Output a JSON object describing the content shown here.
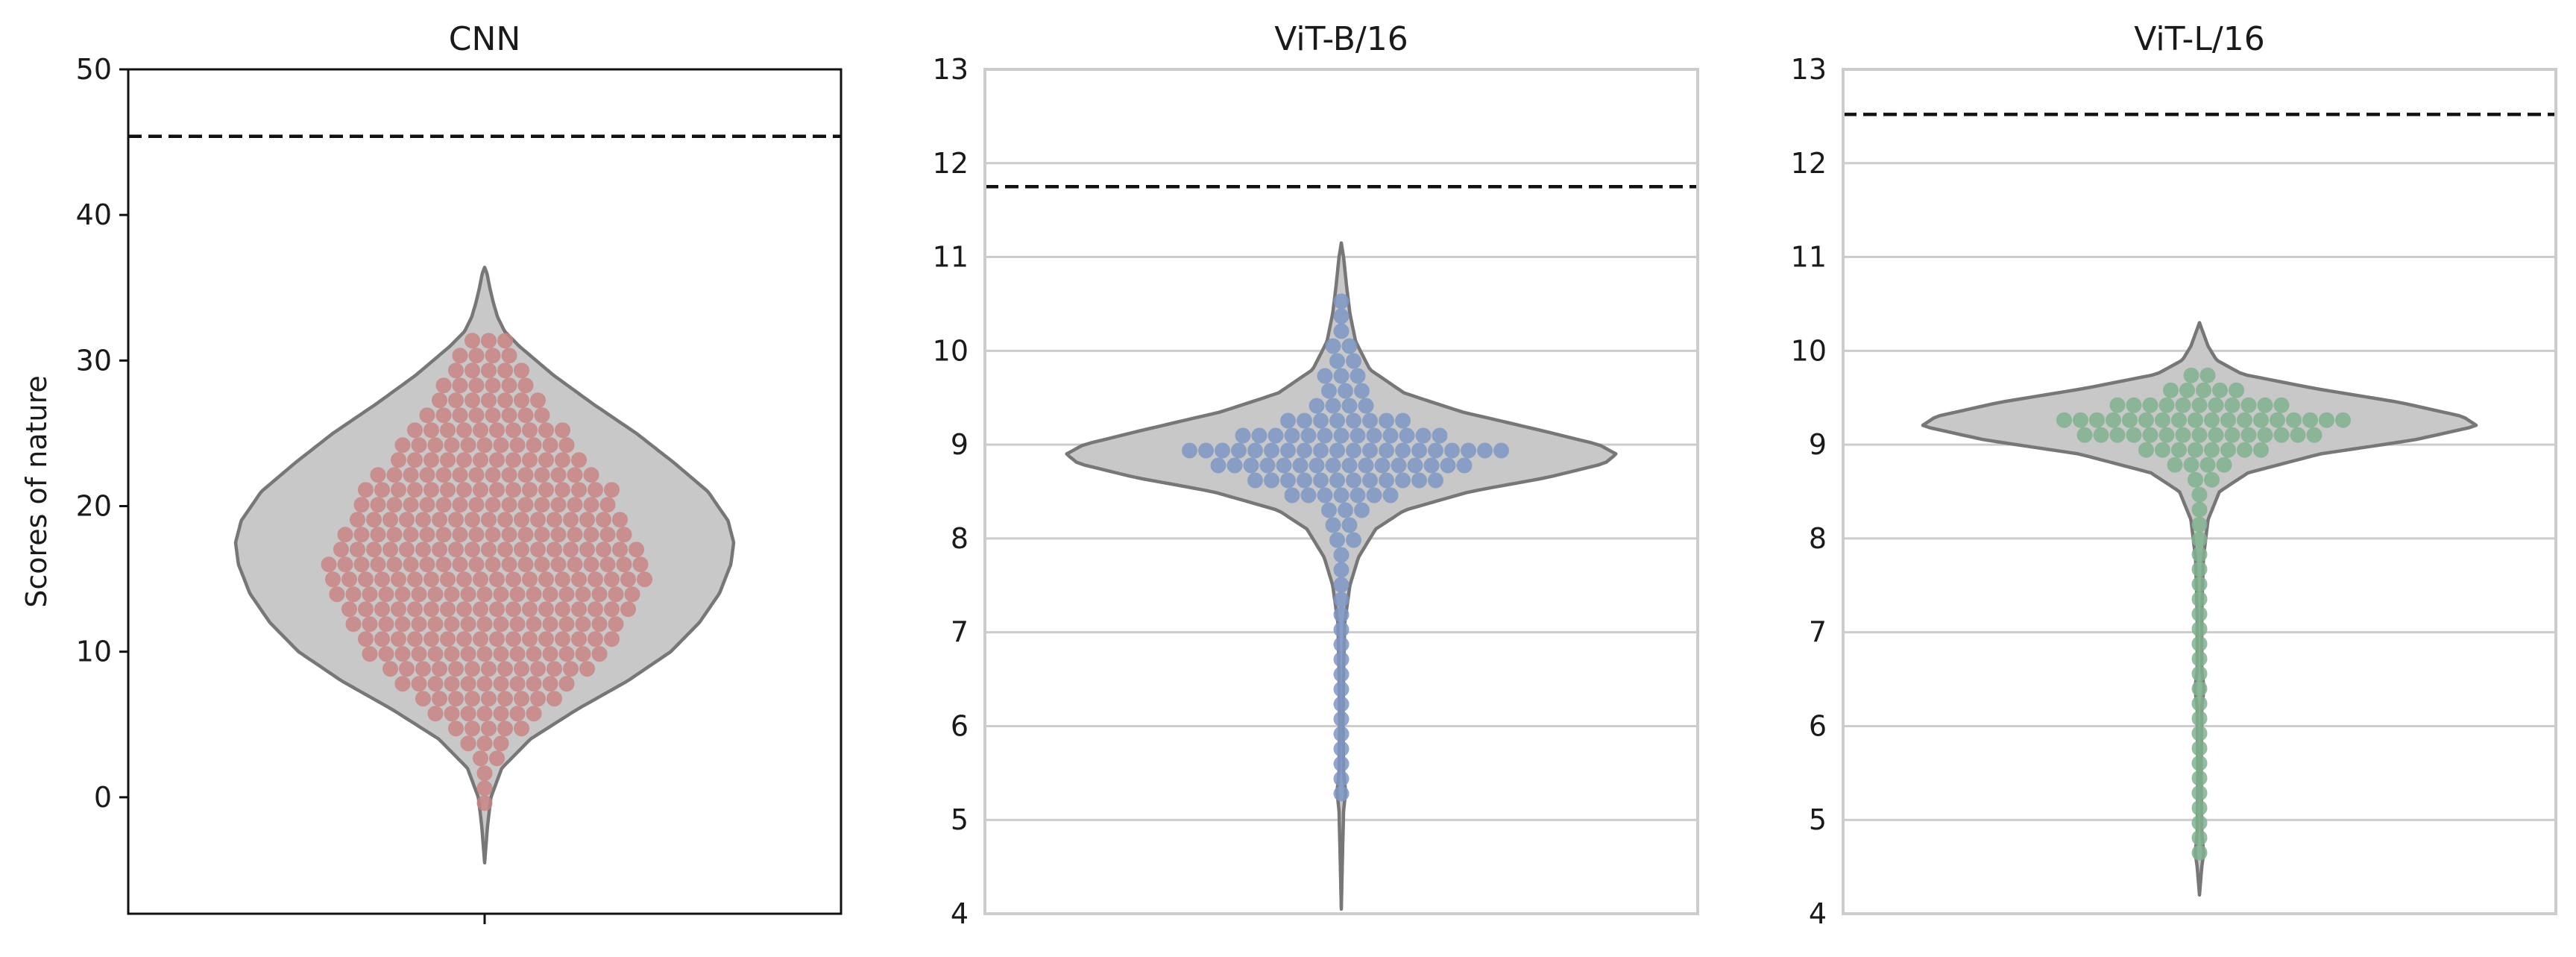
{
  "chart_data": [
    {
      "type": "violin",
      "title": "CNN",
      "ylabel": "Scores of nature",
      "xlabel": "",
      "ylim": [
        -8,
        50
      ],
      "yticks": [
        0,
        10,
        20,
        30,
        40,
        50
      ],
      "grid": false,
      "reference_line": 45.4,
      "point_color": "#c98484",
      "violin": {
        "ymin": -4.5,
        "ymax": 36.4,
        "profile": [
          [
            -4.5,
            0
          ],
          [
            -2,
            0.01
          ],
          [
            0,
            0.022
          ],
          [
            2,
            0.06
          ],
          [
            4,
            0.16
          ],
          [
            6,
            0.32
          ],
          [
            8,
            0.5
          ],
          [
            10,
            0.65
          ],
          [
            12,
            0.75
          ],
          [
            14,
            0.82
          ],
          [
            16,
            0.86
          ],
          [
            17.5,
            0.87
          ],
          [
            19,
            0.85
          ],
          [
            21,
            0.78
          ],
          [
            23,
            0.66
          ],
          [
            25,
            0.53
          ],
          [
            27,
            0.38
          ],
          [
            29,
            0.24
          ],
          [
            31,
            0.12
          ],
          [
            32,
            0.07
          ],
          [
            33,
            0.045
          ],
          [
            34,
            0.03
          ],
          [
            35,
            0.018
          ],
          [
            36,
            0.008
          ],
          [
            36.4,
            0
          ]
        ]
      },
      "distribution": {
        "center": 16,
        "min": -0.4,
        "max": 32.2,
        "profile": [
          [
            -0.4,
            1
          ],
          [
            2,
            1
          ],
          [
            4,
            3
          ],
          [
            6,
            8
          ],
          [
            8,
            11
          ],
          [
            10,
            15
          ],
          [
            12,
            17
          ],
          [
            13.5,
            19
          ],
          [
            15,
            20
          ],
          [
            17,
            19
          ],
          [
            19,
            17
          ],
          [
            21,
            16
          ],
          [
            23,
            12
          ],
          [
            25,
            10
          ],
          [
            27,
            7
          ],
          [
            29,
            5
          ],
          [
            31,
            3
          ],
          [
            32.2,
            2
          ]
        ]
      }
    },
    {
      "type": "violin",
      "title": "ViT-B/16",
      "ylabel": "",
      "xlabel": "",
      "ylim": [
        4,
        13
      ],
      "yticks": [
        4,
        5,
        6,
        7,
        8,
        9,
        10,
        11,
        12,
        13
      ],
      "grid": true,
      "reference_line": 11.75,
      "point_color": "#7d96c4",
      "violin": {
        "ymin": 4.05,
        "ymax": 11.15,
        "profile": [
          [
            4.05,
            0
          ],
          [
            4.6,
            0.004
          ],
          [
            5.1,
            0.008
          ],
          [
            5.3,
            0.015
          ],
          [
            5.5,
            0.008
          ],
          [
            6,
            0.006
          ],
          [
            6.6,
            0.008
          ],
          [
            7.1,
            0.012
          ],
          [
            7.5,
            0.03
          ],
          [
            7.8,
            0.06
          ],
          [
            8.1,
            0.12
          ],
          [
            8.3,
            0.22
          ],
          [
            8.5,
            0.45
          ],
          [
            8.65,
            0.72
          ],
          [
            8.8,
            0.92
          ],
          [
            8.9,
            0.96
          ],
          [
            9.0,
            0.9
          ],
          [
            9.15,
            0.7
          ],
          [
            9.35,
            0.42
          ],
          [
            9.55,
            0.22
          ],
          [
            9.8,
            0.1
          ],
          [
            10.1,
            0.05
          ],
          [
            10.4,
            0.03
          ],
          [
            10.7,
            0.018
          ],
          [
            11.0,
            0.008
          ],
          [
            11.15,
            0
          ]
        ]
      },
      "distribution": {
        "center": 8.95,
        "min": 5.28,
        "max": 10.68,
        "profile": [
          [
            5.28,
            1
          ],
          [
            7.75,
            1
          ],
          [
            8.0,
            2
          ],
          [
            8.3,
            3
          ],
          [
            8.5,
            8
          ],
          [
            8.7,
            14
          ],
          [
            8.85,
            18
          ],
          [
            8.95,
            20
          ],
          [
            9.05,
            15
          ],
          [
            9.2,
            9
          ],
          [
            9.4,
            4
          ],
          [
            9.65,
            3
          ],
          [
            9.9,
            2
          ],
          [
            10.1,
            2
          ],
          [
            10.3,
            1
          ],
          [
            10.68,
            1
          ]
        ]
      }
    },
    {
      "type": "violin",
      "title": "ViT-L/16",
      "ylabel": "",
      "xlabel": "",
      "ylim": [
        4,
        13
      ],
      "yticks": [
        4,
        5,
        6,
        7,
        8,
        9,
        10,
        11,
        12,
        13
      ],
      "grid": true,
      "reference_line": 12.52,
      "point_color": "#7fb28e",
      "violin": {
        "ymin": 4.2,
        "ymax": 10.3,
        "profile": [
          [
            4.2,
            0
          ],
          [
            4.5,
            0.008
          ],
          [
            4.65,
            0.015
          ],
          [
            4.85,
            0.008
          ],
          [
            5.5,
            0.006
          ],
          [
            6.2,
            0.008
          ],
          [
            6.4,
            0.016
          ],
          [
            6.6,
            0.008
          ],
          [
            7.2,
            0.008
          ],
          [
            7.8,
            0.014
          ],
          [
            8.2,
            0.03
          ],
          [
            8.5,
            0.07
          ],
          [
            8.7,
            0.17
          ],
          [
            8.9,
            0.42
          ],
          [
            9.05,
            0.75
          ],
          [
            9.2,
            0.97
          ],
          [
            9.3,
            0.92
          ],
          [
            9.45,
            0.7
          ],
          [
            9.6,
            0.4
          ],
          [
            9.75,
            0.15
          ],
          [
            9.9,
            0.06
          ],
          [
            10.05,
            0.03
          ],
          [
            10.2,
            0.012
          ],
          [
            10.3,
            0
          ]
        ]
      },
      "distribution": {
        "center": 9.2,
        "min": 4.65,
        "max": 9.85,
        "profile": [
          [
            4.65,
            1
          ],
          [
            6.4,
            1
          ],
          [
            8.45,
            1
          ],
          [
            8.7,
            2
          ],
          [
            8.9,
            6
          ],
          [
            9.05,
            13
          ],
          [
            9.2,
            20
          ],
          [
            9.35,
            14
          ],
          [
            9.5,
            7
          ],
          [
            9.65,
            3
          ],
          [
            9.85,
            1
          ]
        ]
      }
    }
  ]
}
